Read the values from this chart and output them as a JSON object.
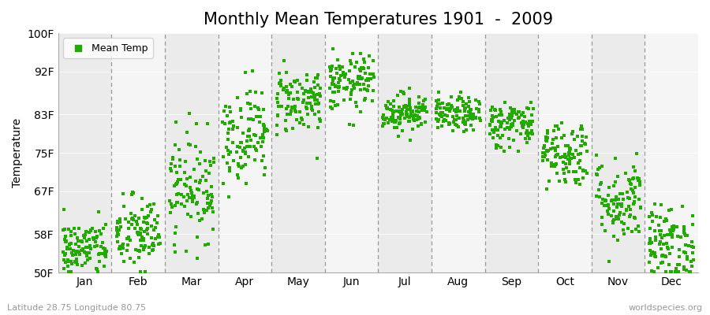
{
  "title": "Monthly Mean Temperatures 1901  -  2009",
  "ylabel": "Temperature",
  "subtitle": "Latitude 28.75 Longitude 80.75",
  "watermark": "worldspecies.org",
  "ytick_labels": [
    "50F",
    "58F",
    "67F",
    "75F",
    "83F",
    "92F",
    "100F"
  ],
  "ytick_values": [
    50,
    58,
    67,
    75,
    83,
    92,
    100
  ],
  "ylim": [
    50,
    100
  ],
  "months": [
    "Jan",
    "Feb",
    "Mar",
    "Apr",
    "May",
    "Jun",
    "Jul",
    "Aug",
    "Sep",
    "Oct",
    "Nov",
    "Dec"
  ],
  "month_means": [
    55.0,
    58.0,
    68.0,
    79.0,
    86.0,
    89.5,
    83.5,
    83.0,
    81.0,
    75.0,
    65.0,
    56.0
  ],
  "month_stds": [
    3.0,
    4.0,
    5.5,
    5.0,
    3.5,
    3.0,
    2.0,
    1.8,
    2.5,
    3.5,
    4.5,
    4.0
  ],
  "n_years": 109,
  "dot_color": "#22aa00",
  "dot_size": 8,
  "bg_color": "#ffffff",
  "band_colors": [
    "#ebebeb",
    "#f5f5f5"
  ],
  "legend_label": "Mean Temp",
  "grid_color": "#999999",
  "title_fontsize": 15,
  "label_fontsize": 10,
  "tick_fontsize": 10
}
